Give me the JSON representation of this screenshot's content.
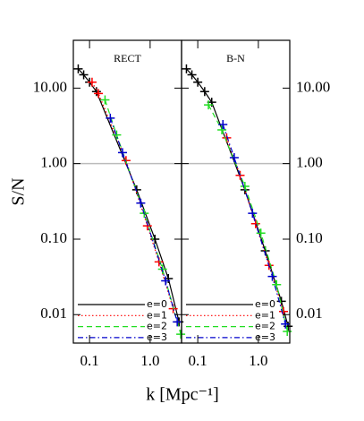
{
  "chart_data": [
    {
      "type": "line",
      "title": "RECT",
      "y_label": "S/N",
      "x_label": "k [Mpc⁻¹]",
      "xscale": "log",
      "yscale": "log",
      "xlim": [
        0.054,
        3.3
      ],
      "ylim": [
        0.0042,
        43
      ],
      "xticks": [
        0.1,
        {
          "value": 1,
          "label": "1.0"
        }
      ],
      "yticks": [
        {
          "value": 0.01,
          "label": "0.01"
        },
        {
          "value": 0.1,
          "label": "0.10"
        },
        {
          "value": 1,
          "label": "1.00"
        },
        {
          "value": 10,
          "label": "10.00"
        }
      ],
      "hline": 1,
      "hline_color": "#bbbbbb",
      "legend": "lower left",
      "ytick_side": "left",
      "series": [
        {
          "name": "e=0",
          "color": "#000000",
          "style": "solid",
          "x": [
            0.065,
            0.08,
            0.1,
            0.13,
            0.6,
            1.2,
            2.0,
            3.0
          ],
          "values": [
            18,
            15,
            12,
            9,
            0.45,
            0.1,
            0.03,
            0.008
          ]
        },
        {
          "name": "e=1",
          "color": "#ff0000",
          "style": "dotted",
          "x": [
            0.11,
            0.14,
            0.4,
            0.9,
            1.4,
            2.4
          ],
          "values": [
            12,
            8.5,
            1.1,
            0.15,
            0.05,
            0.012
          ]
        },
        {
          "name": "e=2",
          "color": "#22dd22",
          "style": "dashed",
          "x": [
            0.18,
            0.28,
            0.8,
            1.6,
            3.2
          ],
          "values": [
            7,
            2.4,
            0.22,
            0.04,
            0.0055
          ]
        },
        {
          "name": "e=3",
          "color": "#0000cc",
          "style": "dashdot",
          "x": [
            0.22,
            0.35,
            0.7,
            1.8,
            2.8
          ],
          "values": [
            4,
            1.4,
            0.3,
            0.028,
            0.008
          ]
        }
      ]
    },
    {
      "type": "line",
      "title": "B-N",
      "xscale": "log",
      "yscale": "log",
      "xlim": [
        0.054,
        3.3
      ],
      "ylim": [
        0.0042,
        43
      ],
      "xticks": [
        0.1,
        {
          "value": 1,
          "label": "1.0"
        }
      ],
      "yticks": [
        {
          "value": 0.01,
          "label": "0.01"
        },
        {
          "value": 0.1,
          "label": "0.10"
        },
        {
          "value": 1,
          "label": "1.00"
        },
        {
          "value": 10,
          "label": "10.00"
        }
      ],
      "hline": 1,
      "hline_color": "#bbbbbb",
      "legend": "lower left",
      "ytick_side": "right",
      "series": [
        {
          "name": "e=0",
          "color": "#000000",
          "style": "solid",
          "x": [
            0.065,
            0.08,
            0.1,
            0.13,
            0.17,
            0.6,
            1.3,
            2.4,
            3.1
          ],
          "values": [
            18,
            15,
            12,
            9,
            6.5,
            0.45,
            0.07,
            0.015,
            0.007
          ]
        },
        {
          "name": "e=1",
          "color": "#ff0000",
          "style": "dotted",
          "x": [
            0.3,
            0.5,
            0.9,
            1.5,
            2.6
          ],
          "values": [
            2.2,
            0.7,
            0.16,
            0.045,
            0.011
          ]
        },
        {
          "name": "e=2",
          "color": "#22dd22",
          "style": "dashed",
          "x": [
            0.15,
            0.25,
            0.6,
            1.1,
            2.0,
            3.0
          ],
          "values": [
            6,
            2.8,
            0.5,
            0.12,
            0.025,
            0.006
          ]
        },
        {
          "name": "e=3",
          "color": "#0000cc",
          "style": "dashdot",
          "x": [
            0.26,
            0.4,
            0.8,
            1.7,
            2.8
          ],
          "values": [
            3.3,
            1.2,
            0.22,
            0.032,
            0.0075
          ]
        }
      ]
    }
  ]
}
